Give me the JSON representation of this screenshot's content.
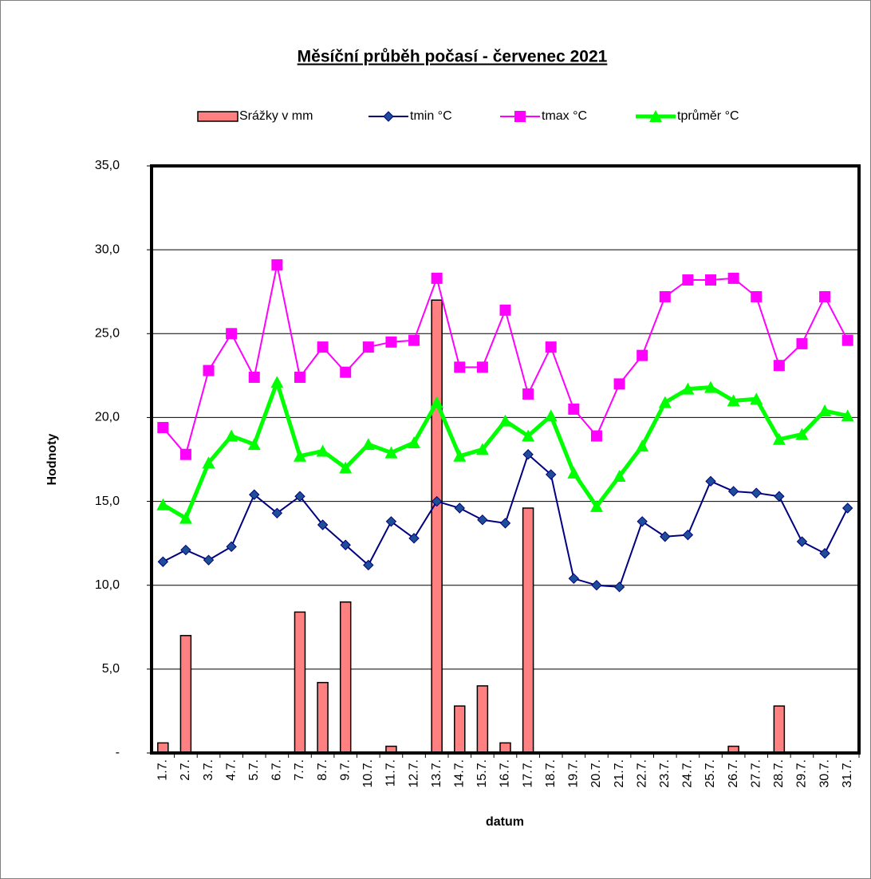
{
  "chart_data": {
    "type": "combo",
    "title": "Měsíční průběh počasí - červenec 2021",
    "x_label": "datum",
    "y_label": "Hodnoty",
    "categories": [
      "1.7.",
      "2.7.",
      "3.7.",
      "4.7.",
      "5.7.",
      "6.7.",
      "7.7.",
      "8.7.",
      "9.7.",
      "10.7.",
      "11.7.",
      "12.7.",
      "13.7.",
      "14.7.",
      "15.7.",
      "16.7.",
      "17.7.",
      "18.7.",
      "19.7.",
      "20.7.",
      "21.7.",
      "22.7.",
      "23.7.",
      "24.7.",
      "25.7.",
      "26.7.",
      "27.7.",
      "28.7.",
      "29.7.",
      "30.7.",
      "31.7."
    ],
    "ylim": [
      0,
      35
    ],
    "yticks": [
      {
        "value": 0,
        "label": "-"
      },
      {
        "value": 5,
        "label": "5,0"
      },
      {
        "value": 10,
        "label": "10,0"
      },
      {
        "value": 15,
        "label": "15,0"
      },
      {
        "value": 20,
        "label": "20,0"
      },
      {
        "value": 25,
        "label": "25,0"
      },
      {
        "value": 30,
        "label": "30,0"
      },
      {
        "value": 35,
        "label": "35,0"
      }
    ],
    "grid": true,
    "series": [
      {
        "name": "Srážky v mm",
        "type": "bar",
        "color": "#ff8080",
        "values": [
          0.6,
          7.0,
          0,
          0,
          0,
          0,
          8.4,
          4.2,
          9.0,
          0,
          0.4,
          0,
          27.0,
          2.8,
          4.0,
          0.6,
          14.6,
          0,
          0,
          0,
          0,
          0,
          0,
          0,
          0,
          0.4,
          0,
          2.8,
          0,
          0,
          0
        ]
      },
      {
        "name": "tmin °C",
        "type": "line",
        "color": "#000080",
        "marker": "diamond",
        "values": [
          11.4,
          12.1,
          11.5,
          12.3,
          15.4,
          14.3,
          15.3,
          13.6,
          12.4,
          11.2,
          13.8,
          12.8,
          15.0,
          14.6,
          13.9,
          13.7,
          17.8,
          16.6,
          10.4,
          10.0,
          9.9,
          13.8,
          12.9,
          13.0,
          16.2,
          15.6,
          15.5,
          15.3,
          12.6,
          11.9,
          14.6
        ]
      },
      {
        "name": "tmax °C",
        "type": "line",
        "color": "#ff00ff",
        "marker": "square",
        "values": [
          19.4,
          17.8,
          22.8,
          25.0,
          22.4,
          29.1,
          22.4,
          24.2,
          22.7,
          24.2,
          24.5,
          24.6,
          28.3,
          23.0,
          23.0,
          26.4,
          21.4,
          24.2,
          20.5,
          18.9,
          22.0,
          23.7,
          27.2,
          28.2,
          28.2,
          28.3,
          27.2,
          23.1,
          24.4,
          27.2,
          24.6
        ]
      },
      {
        "name": "tprůměr °C",
        "type": "line",
        "color": "#00ff00",
        "marker": "triangle",
        "values": [
          14.8,
          14.0,
          17.3,
          18.9,
          18.4,
          22.1,
          17.7,
          18.0,
          17.0,
          18.4,
          17.9,
          18.5,
          20.9,
          17.7,
          18.1,
          19.8,
          18.9,
          20.1,
          16.7,
          14.7,
          16.5,
          18.3,
          20.9,
          21.7,
          21.8,
          21.0,
          21.1,
          18.7,
          19.0,
          20.4,
          20.1
        ]
      }
    ]
  }
}
